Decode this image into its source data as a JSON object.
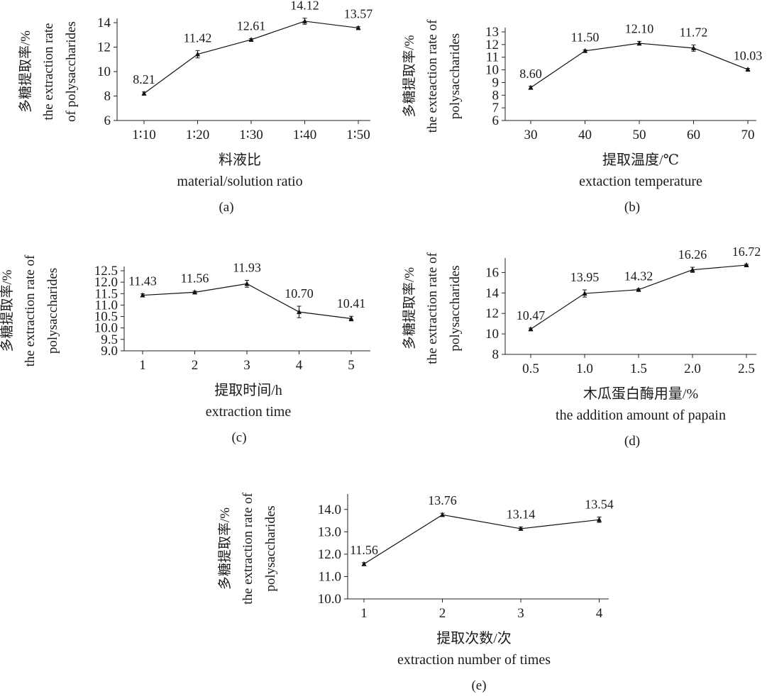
{
  "figure": {
    "panels": [
      {
        "panel_label": "(a)",
        "chart_data": {
          "type": "line",
          "categories": [
            "1∶10",
            "1∶20",
            "1∶30",
            "1∶40",
            "1∶50"
          ],
          "values": [
            8.21,
            11.42,
            12.61,
            14.12,
            13.57
          ],
          "errors": [
            0.12,
            0.3,
            0.08,
            0.25,
            0.1
          ],
          "data_labels": [
            "8.21",
            "11.42",
            "12.61",
            "14.12",
            "13.57"
          ],
          "xlabel": [
            "料液比",
            "material/solution ratio"
          ],
          "ylabel": [
            "多糖提取率/%",
            "the extraction rate",
            "of polysaccharides"
          ],
          "ylim": [
            6,
            14
          ],
          "yticks": [
            "6",
            "8",
            "10",
            "12",
            "14"
          ],
          "grid": false,
          "marker": "triangle"
        }
      },
      {
        "panel_label": "(b)",
        "chart_data": {
          "type": "line",
          "categories": [
            "30",
            "40",
            "50",
            "60",
            "70"
          ],
          "values": [
            8.6,
            11.5,
            12.1,
            11.72,
            10.03
          ],
          "errors": [
            0.1,
            0.08,
            0.15,
            0.25,
            0.08
          ],
          "data_labels": [
            "8.60",
            "11.50",
            "12.10",
            "11.72",
            "10.03"
          ],
          "xlabel": [
            "提取温度/℃",
            "extaction temperature"
          ],
          "ylabel": [
            "多糖提取率/%",
            "the exteaction rate of",
            "polysaccharides"
          ],
          "ylim": [
            6,
            13
          ],
          "yticks": [
            "6",
            "7",
            "8",
            "9",
            "10",
            "11",
            "12",
            "13"
          ],
          "grid": false,
          "marker": "triangle"
        }
      },
      {
        "panel_label": "(c)",
        "chart_data": {
          "type": "line",
          "categories": [
            "1",
            "2",
            "3",
            "4",
            "5"
          ],
          "values": [
            11.43,
            11.56,
            11.93,
            10.7,
            10.41
          ],
          "errors": [
            0.06,
            0.05,
            0.15,
            0.25,
            0.1
          ],
          "data_labels": [
            "11.43",
            "11.56",
            "11.93",
            "10.70",
            "10.41"
          ],
          "xlabel": [
            "提取时间/h",
            "extraction time"
          ],
          "ylabel": [
            "多糖提取率/%",
            "the extraction rate of",
            "polysaccharides"
          ],
          "ylim": [
            9.0,
            12.5
          ],
          "yticks": [
            "9.0",
            "9.5",
            "10.0",
            "10.5",
            "11.0",
            "11.5",
            "12.0",
            "12.5"
          ],
          "grid": false,
          "marker": "triangle"
        }
      },
      {
        "panel_label": "(d)",
        "chart_data": {
          "type": "line",
          "categories": [
            "0.5",
            "1.0",
            "1.5",
            "2.0",
            "2.5"
          ],
          "values": [
            10.47,
            13.95,
            14.32,
            16.26,
            16.72
          ],
          "errors": [
            0.1,
            0.35,
            0.1,
            0.25,
            0.08
          ],
          "data_labels": [
            "10.47",
            "13.95",
            "14.32",
            "16.26",
            "16.72"
          ],
          "xlabel": [
            "木瓜蛋白酶用量/%",
            "the addition amount of papain"
          ],
          "ylabel": [
            "多糖提取率/%",
            "the extraction rate of",
            "polysaccharides"
          ],
          "ylim": [
            8,
            17
          ],
          "yticks": [
            "8",
            "10",
            "12",
            "14",
            "16"
          ],
          "grid": false,
          "marker": "triangle"
        }
      },
      {
        "panel_label": "(e)",
        "chart_data": {
          "type": "line",
          "categories": [
            "1",
            "2",
            "3",
            "4"
          ],
          "values": [
            11.56,
            13.76,
            13.14,
            13.54
          ],
          "errors": [
            0.06,
            0.07,
            0.07,
            0.12
          ],
          "data_labels": [
            "11.56",
            "13.76",
            "13.14",
            "13.54"
          ],
          "xlabel": [
            "提取次数/次",
            "extraction number of times"
          ],
          "ylabel": [
            "多糖提取率/%",
            "the extraction rate of",
            "polysaccharides"
          ],
          "ylim": [
            10.0,
            14.5
          ],
          "yticks": [
            "10.0",
            "11.0",
            "12.0",
            "13.0",
            "14.0"
          ],
          "grid": false,
          "marker": "triangle"
        }
      }
    ]
  }
}
